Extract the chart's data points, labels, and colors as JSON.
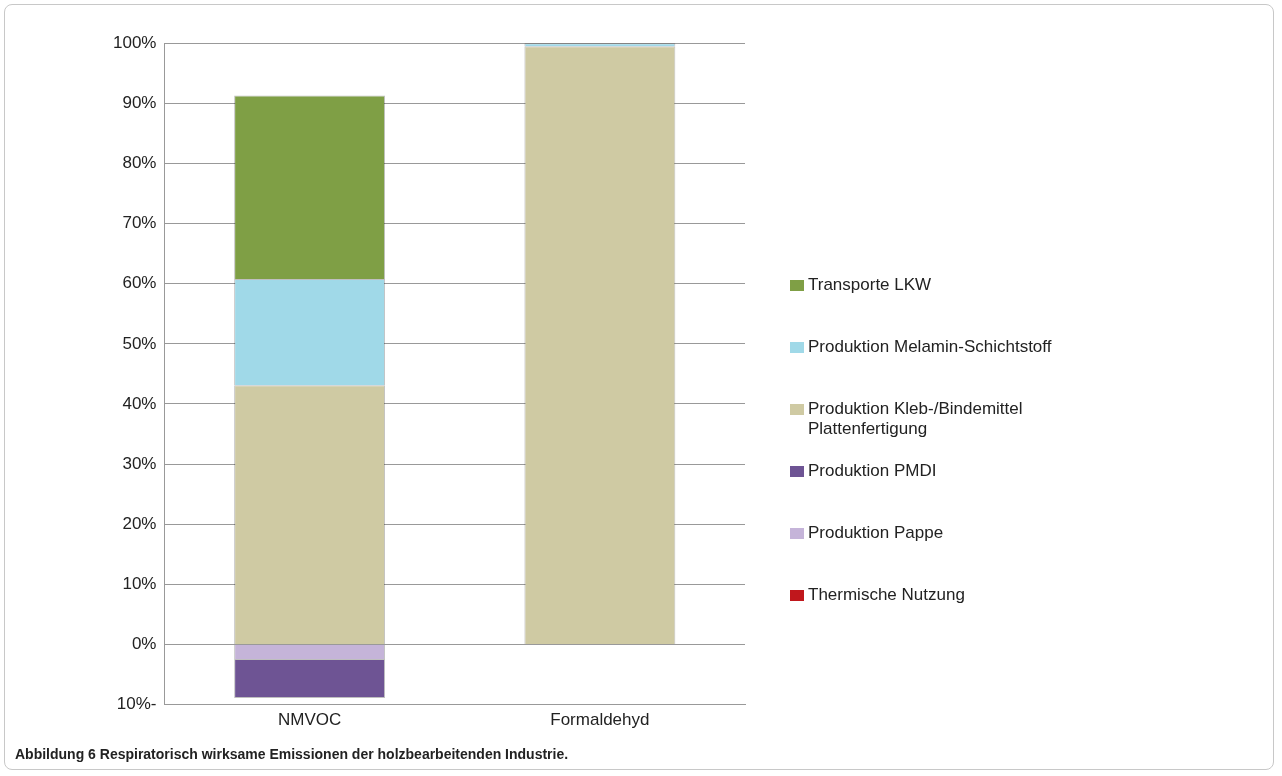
{
  "chart_data": {
    "type": "bar",
    "stacked": true,
    "categories": [
      "NMVOC",
      "Formaldehyd"
    ],
    "series": [
      {
        "name": "Thermische Nutzung",
        "color": "#c0171c",
        "values": [
          0,
          0
        ]
      },
      {
        "name": "Produktion Pappe",
        "color": "#c5b4d9",
        "values": [
          -2.6,
          0
        ]
      },
      {
        "name": "Produktion PMDI",
        "color": "#6e5494",
        "values": [
          -6.3,
          0
        ]
      },
      {
        "name": "Produktion Kleb-/Bindemittel Plattenfertigung",
        "color": "#cfcaa3",
        "values": [
          43.1,
          99.5
        ]
      },
      {
        "name": "Produktion Melamin-Schichtstoff",
        "color": "#a0d9e8",
        "values": [
          17.7,
          0.5
        ]
      },
      {
        "name": "Transporte LKW",
        "color": "#7f9f45",
        "values": [
          30.5,
          0
        ]
      }
    ],
    "ylim": [
      -10,
      100
    ],
    "yticks": [
      {
        "value": -10,
        "label": "10%-"
      },
      {
        "value": 0,
        "label": "0%"
      },
      {
        "value": 10,
        "label": "10%"
      },
      {
        "value": 20,
        "label": "20%"
      },
      {
        "value": 30,
        "label": "30%"
      },
      {
        "value": 40,
        "label": "40%"
      },
      {
        "value": 50,
        "label": "50%"
      },
      {
        "value": 60,
        "label": "60%"
      },
      {
        "value": 70,
        "label": "70%"
      },
      {
        "value": 80,
        "label": "80%"
      },
      {
        "value": 90,
        "label": "90%"
      },
      {
        "value": 100,
        "label": "100%"
      }
    ],
    "grid": "y",
    "legend": "right",
    "annotations": [
      "Abbildung 6 Respiratorisch wirksame Emissionen der holzbearbeitenden Industrie."
    ]
  }
}
